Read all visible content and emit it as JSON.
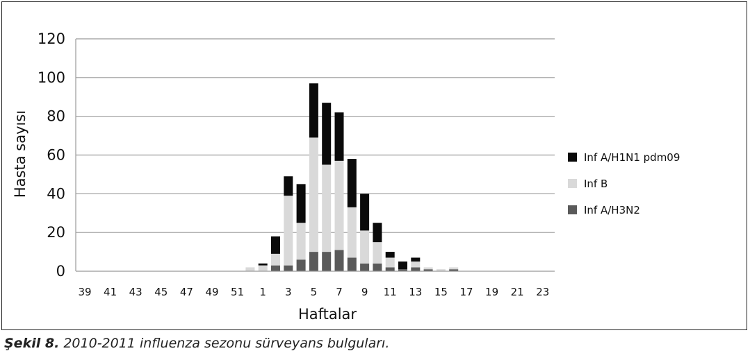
{
  "chart_data": {
    "type": "bar",
    "stacked": true,
    "xlabel": "Haftalar",
    "ylabel": "Hasta sayısı",
    "ylim": [
      0,
      120
    ],
    "yticks": [
      0,
      20,
      40,
      60,
      80,
      100,
      120
    ],
    "grid": true,
    "legend_position": "right",
    "categories": [
      "39",
      "40",
      "41",
      "42",
      "43",
      "44",
      "45",
      "46",
      "47",
      "48",
      "49",
      "50",
      "51",
      "52",
      "1",
      "2",
      "3",
      "4",
      "5",
      "6",
      "7",
      "8",
      "9",
      "10",
      "11",
      "12",
      "13",
      "14",
      "15",
      "16",
      "17",
      "18",
      "19",
      "20",
      "21",
      "22",
      "23"
    ],
    "x_tick_labels": [
      "39",
      "41",
      "43",
      "45",
      "47",
      "49",
      "51",
      "1",
      "3",
      "5",
      "7",
      "9",
      "11",
      "13",
      "15",
      "17",
      "19",
      "21",
      "23"
    ],
    "series": [
      {
        "name": "Inf A/H3N2",
        "color": "#5a5a5a",
        "values": [
          0,
          0,
          0,
          0,
          0,
          0,
          0,
          0,
          0,
          0,
          0,
          0,
          0,
          0,
          0,
          3,
          3,
          6,
          10,
          10,
          11,
          7,
          4,
          4,
          2,
          1,
          2,
          1,
          0,
          1,
          0,
          0,
          0,
          0,
          0,
          0,
          0
        ]
      },
      {
        "name": "Inf B",
        "color": "#d9d9d9",
        "values": [
          0,
          0,
          0,
          0,
          0,
          0,
          0,
          0,
          0,
          0,
          0,
          0,
          0,
          2,
          3,
          6,
          36,
          19,
          59,
          45,
          46,
          26,
          17,
          11,
          5,
          0,
          3,
          1,
          1,
          1,
          0,
          0,
          0,
          0,
          0,
          0,
          0
        ]
      },
      {
        "name": "Inf A/H1N1 pdm09",
        "color": "#0a0a0a",
        "values": [
          0,
          0,
          0,
          0,
          0,
          0,
          0,
          0,
          0,
          0,
          0,
          0,
          0,
          0,
          1,
          9,
          10,
          20,
          28,
          32,
          25,
          25,
          19,
          10,
          3,
          4,
          2,
          0,
          0,
          0,
          0,
          0,
          0,
          0,
          0,
          0,
          0
        ]
      }
    ],
    "legend_order": [
      "Inf A/H1N1 pdm09",
      "Inf B",
      "Inf A/H3N2"
    ]
  },
  "caption": {
    "label": "Şekil 8.",
    "text": " 2010-2011 influenza sezonu sürveyans bulguları."
  }
}
